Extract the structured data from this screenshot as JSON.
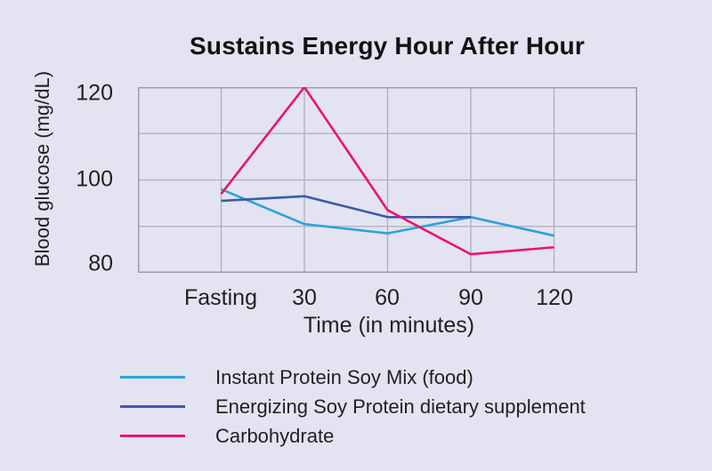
{
  "chart_data": {
    "type": "line",
    "title": "Sustains Energy Hour After Hour",
    "xlabel": "Time (in minutes)",
    "ylabel": "Blood glucose (mg/dL)",
    "categories": [
      "Fasting",
      "30",
      "60",
      "90",
      "120"
    ],
    "series": [
      {
        "name": "Instant Protein Soy Mix (food)",
        "color": "#29A3DC",
        "values": [
          98,
          90.5,
          88.5,
          92,
          88
        ]
      },
      {
        "name": "Energizing Soy Protein dietary supplement",
        "color": "#3B5CA6",
        "values": [
          95.5,
          96.5,
          92,
          92,
          null
        ]
      },
      {
        "name": "Carbohydrate",
        "color": "#EB146E",
        "values": [
          97,
          120,
          93.5,
          84,
          85.5
        ]
      }
    ],
    "ylim": [
      80,
      120
    ],
    "yticks": [
      "120",
      "100",
      "80"
    ],
    "y_gridlines": [
      120,
      110,
      100,
      90,
      80
    ],
    "grid": true,
    "legend_position": "bottom"
  },
  "colors": {
    "background": "#E4E3F1",
    "gridline": "#AEAEBC",
    "frame": "#9C9DAA",
    "text": "#231F20"
  }
}
